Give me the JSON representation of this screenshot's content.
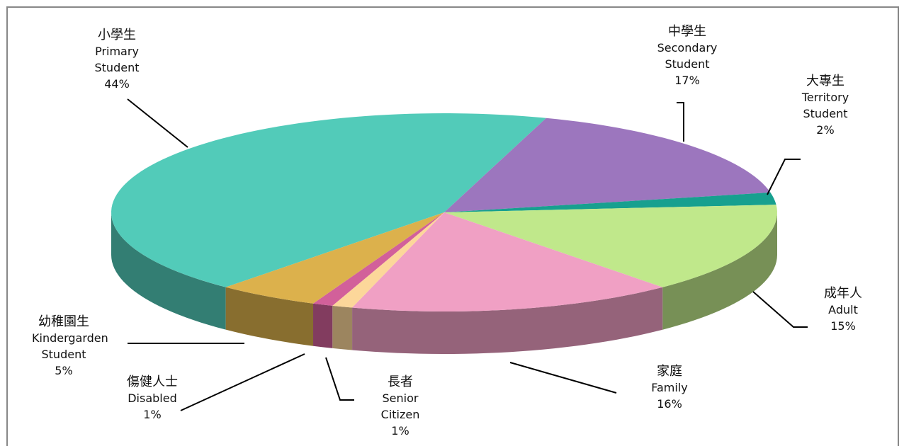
{
  "chart_data": {
    "type": "pie3d",
    "categories": [
      "小學生",
      "中學生",
      "大專生",
      "成年人",
      "家庭",
      "長者",
      "傷健人士",
      "幼稚園生"
    ],
    "categories_en": [
      "Primary Student",
      "Secondary Student",
      "Territory Student",
      "Adult",
      "Family",
      "Senior Citizen",
      "Disabled",
      "Kindergarden Student"
    ],
    "values": [
      44,
      17,
      2,
      15,
      16,
      1,
      1,
      5
    ],
    "value_labels": [
      "44%",
      "17%",
      "2%",
      "15%",
      "16%",
      "1%",
      "1%",
      "5%"
    ],
    "colors": [
      "#52cbb9",
      "#9c76be",
      "#17a08f",
      "#c0e88b",
      "#f0a0c4",
      "#fcd79a",
      "#d2609a",
      "#dcb14c"
    ]
  }
}
